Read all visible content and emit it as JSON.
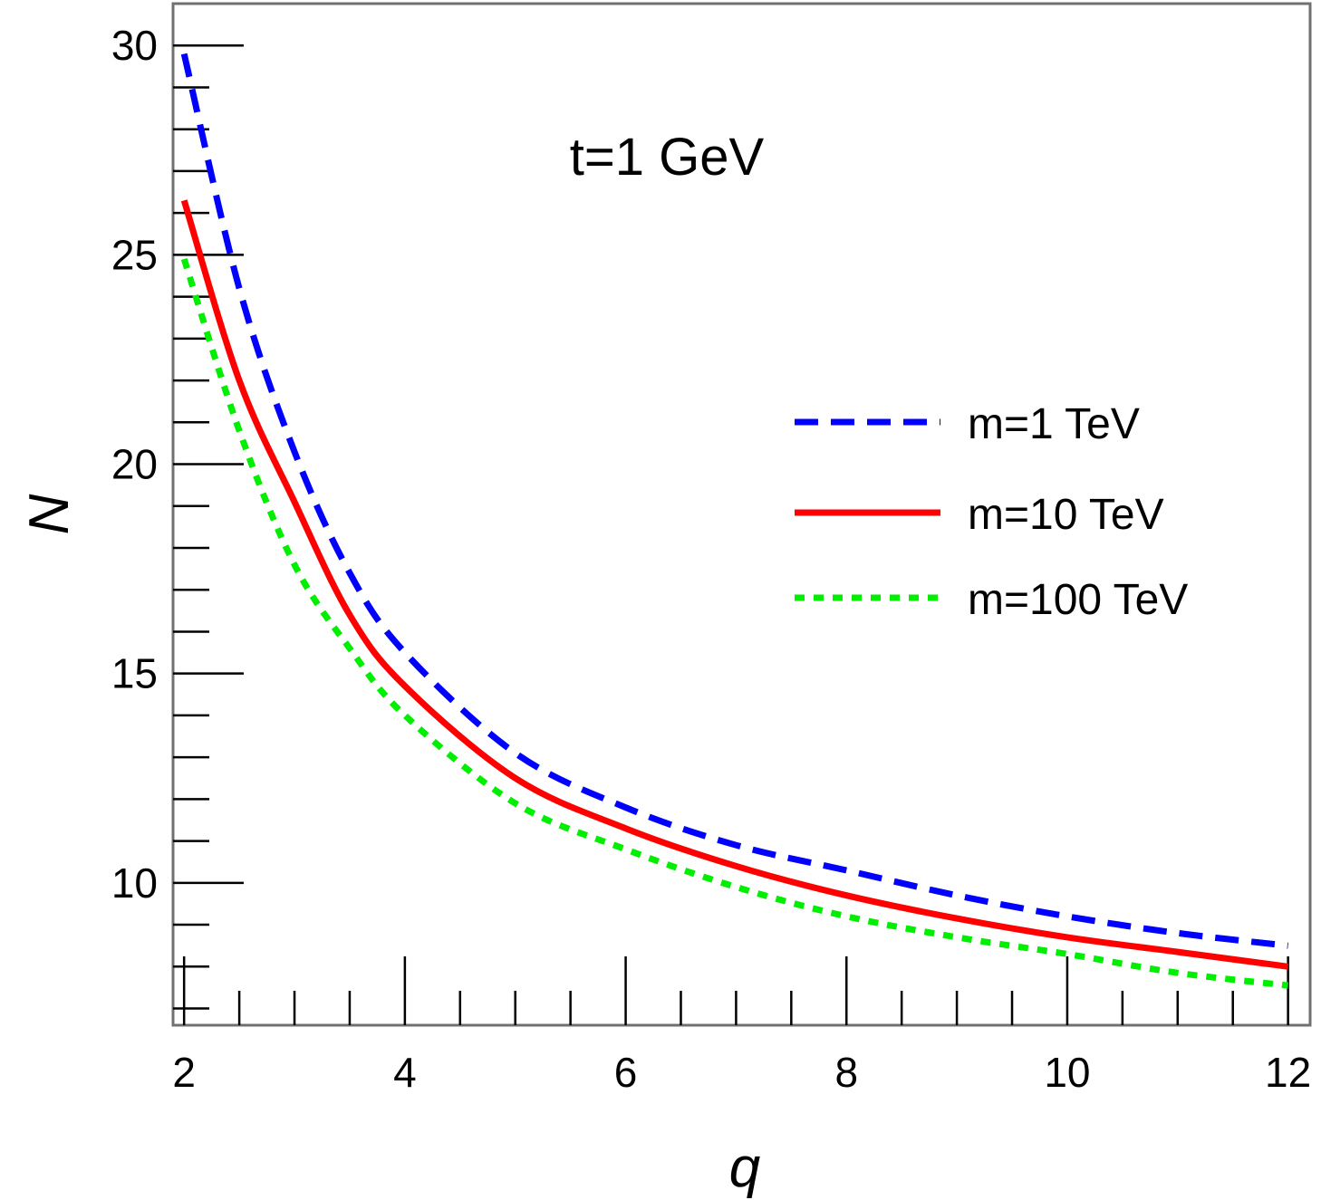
{
  "chart_data": {
    "type": "line",
    "title": "",
    "xlabel": "q",
    "ylabel": "N",
    "xlim": [
      1.9,
      12.2
    ],
    "ylim": [
      6.6,
      31.0
    ],
    "x_ticks": [
      2,
      4,
      6,
      8,
      10,
      12
    ],
    "x_tick_labels": [
      "2",
      "4",
      "6",
      "8",
      "10",
      "12"
    ],
    "y_ticks": [
      10,
      15,
      20,
      25,
      30
    ],
    "y_tick_labels": [
      "10",
      "15",
      "20",
      "25",
      "30"
    ],
    "grid": false,
    "legend_position": "right",
    "annotation": "t=1 GeV",
    "series": [
      {
        "name": "m=1 TeV",
        "style": "dashed",
        "color": "#0000ff",
        "x": [
          2,
          2.5,
          3,
          3.5,
          4,
          5,
          6,
          7,
          8,
          9,
          10,
          11,
          12
        ],
        "y": [
          29.8,
          24.2,
          20.3,
          17.4,
          15.5,
          13.1,
          11.8,
          10.9,
          10.3,
          9.7,
          9.2,
          8.8,
          8.5
        ]
      },
      {
        "name": "m=10 TeV",
        "style": "solid",
        "color": "#ff0000",
        "x": [
          2,
          2.5,
          3,
          3.5,
          4,
          5,
          6,
          7,
          8,
          9,
          10,
          11,
          12
        ],
        "y": [
          26.3,
          22.0,
          19.1,
          16.4,
          14.7,
          12.5,
          11.3,
          10.4,
          9.7,
          9.15,
          8.7,
          8.35,
          8.0
        ]
      },
      {
        "name": "m=100 TeV",
        "style": "dotted",
        "color": "#00ee00",
        "x": [
          2,
          2.5,
          3,
          3.5,
          4,
          5,
          6,
          7,
          8,
          9,
          10,
          11,
          12
        ],
        "y": [
          24.9,
          20.8,
          17.6,
          15.6,
          14.0,
          11.9,
          10.8,
          9.9,
          9.2,
          8.7,
          8.3,
          7.85,
          7.55
        ]
      }
    ]
  }
}
